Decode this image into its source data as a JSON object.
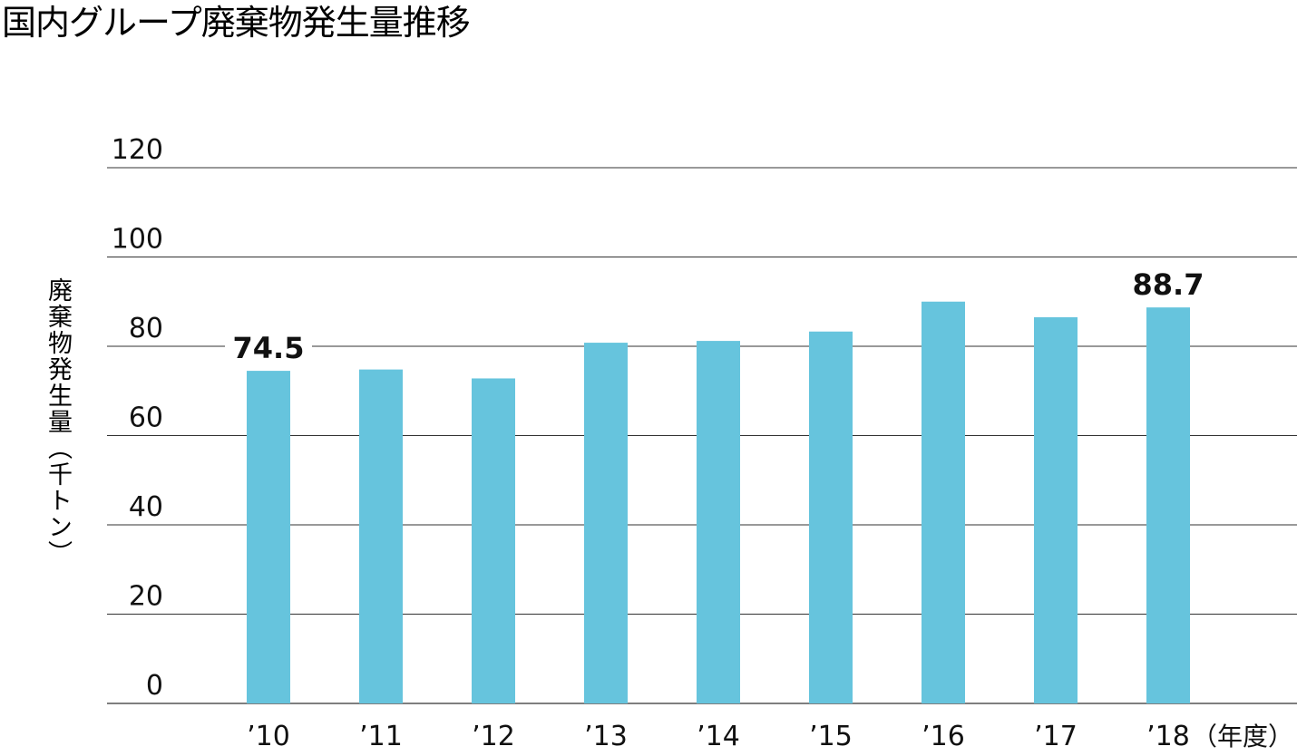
{
  "title": "国内グループ廃棄物発生量推移",
  "chart_data": {
    "type": "bar",
    "title": "国内グループ廃棄物発生量推移",
    "ylabel": "廃棄物発生量（千トン）",
    "xlabel": "（年度）",
    "categories": [
      "’10",
      "’11",
      "’12",
      "’13",
      "’14",
      "’15",
      "’16",
      "’17",
      "’18"
    ],
    "values": [
      74.5,
      74.8,
      72.8,
      80.8,
      81.2,
      83.3,
      90.0,
      86.5,
      88.7
    ],
    "data_labels": {
      "0": "74.5",
      "8": "88.7"
    },
    "ylim": [
      0,
      120
    ],
    "yticks": [
      0,
      20,
      40,
      60,
      80,
      100,
      120
    ],
    "grid": true,
    "bar_color": "#66c4dd"
  }
}
